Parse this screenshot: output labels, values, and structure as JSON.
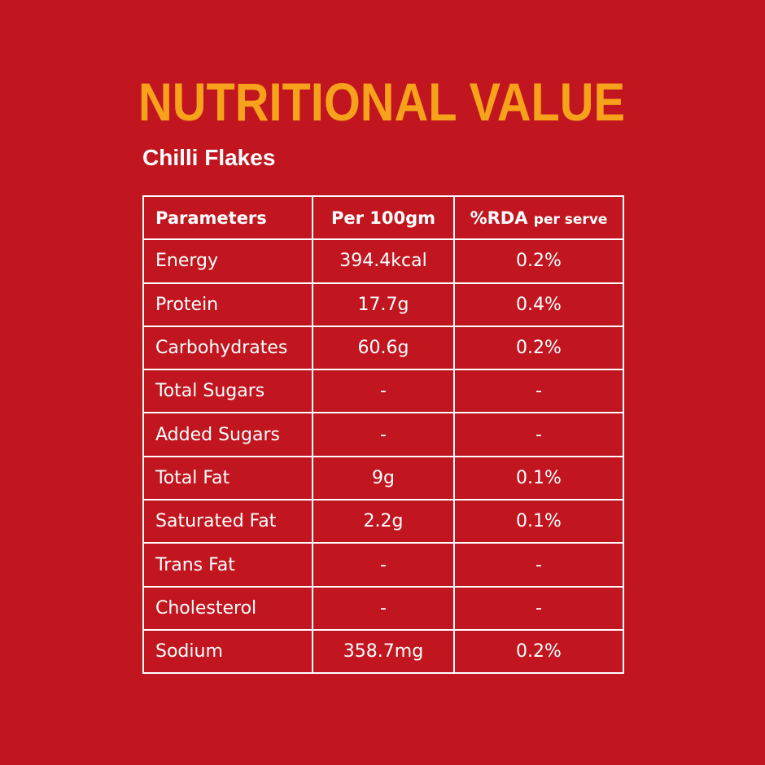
{
  "header": {
    "title": "NUTRITIONAL VALUE",
    "subtitle": "Chilli Flakes"
  },
  "table": {
    "columns": [
      "Parameters",
      "Per 100gm",
      {
        "main": "%RDA",
        "note": "per serve"
      }
    ],
    "rows": [
      [
        "Energy",
        "394.4kcal",
        "0.2%"
      ],
      [
        "Protein",
        "17.7g",
        "0.4%"
      ],
      [
        "Carbohydrates",
        "60.6g",
        "0.2%"
      ],
      [
        "Total Sugars",
        "-",
        "-"
      ],
      [
        "Added Sugars",
        "-",
        "-"
      ],
      [
        "Total Fat",
        "9g",
        "0.1%"
      ],
      [
        "Saturated Fat",
        "2.2g",
        "0.1%"
      ],
      [
        "Trans Fat",
        "-",
        "-"
      ],
      [
        "Cholesterol",
        "-",
        "-"
      ],
      [
        "Sodium",
        "358.7mg",
        "0.2%"
      ]
    ]
  }
}
